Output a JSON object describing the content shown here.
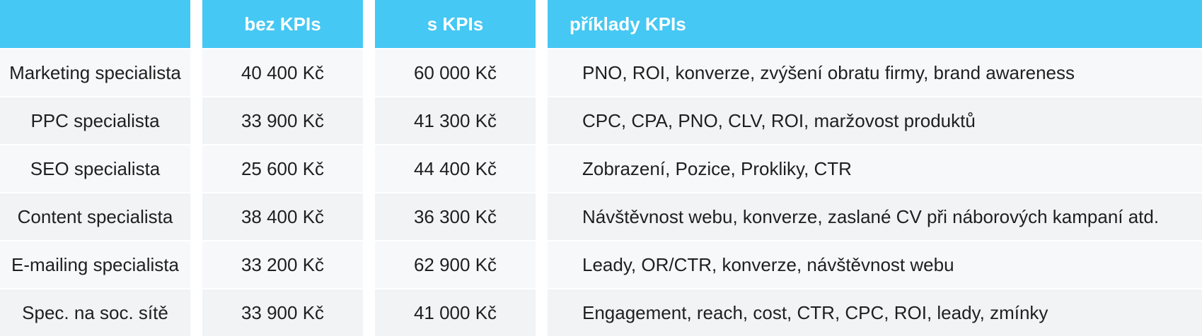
{
  "header": {
    "col1": "",
    "col2": "bez KPIs",
    "col3": "s KPIs",
    "col4": "příklady KPIs"
  },
  "rows": [
    {
      "role": "Marketing specialista",
      "without": "40 400 Kč",
      "with": "60 000 Kč",
      "kpis": "PNO, ROI, konverze, zvýšení obratu firmy, brand awareness"
    },
    {
      "role": "PPC specialista",
      "without": "33 900 Kč",
      "with": "41 300 Kč",
      "kpis": "CPC, CPA, PNO, CLV, ROI, maržovost produktů"
    },
    {
      "role": "SEO specialista",
      "without": "25 600 Kč",
      "with": "44 400 Kč",
      "kpis": "Zobrazení, Pozice, Prokliky, CTR"
    },
    {
      "role": "Content specialista",
      "without": "38 400 Kč",
      "with": "36 300 Kč",
      "kpis": "Návštěvnost webu, konverze, zaslané CV při náborových kampaní atd."
    },
    {
      "role": "E-mailing specialista",
      "without": "33 200 Kč",
      "with": "62 900 Kč",
      "kpis": "Leady, OR/CTR, konverze, návštěvnost webu"
    },
    {
      "role": "Spec. na soc. sítě",
      "without": "33 900 Kč",
      "with": "41 000 Kč",
      "kpis": "Engagement, reach, cost, CTR, CPC, ROI, leady, zmínky"
    }
  ],
  "colors": {
    "header_bg": "#45c8f3",
    "header_text": "#ffffff",
    "row_light": "#f7f8fa",
    "row_dark": "#f1f3f5"
  }
}
